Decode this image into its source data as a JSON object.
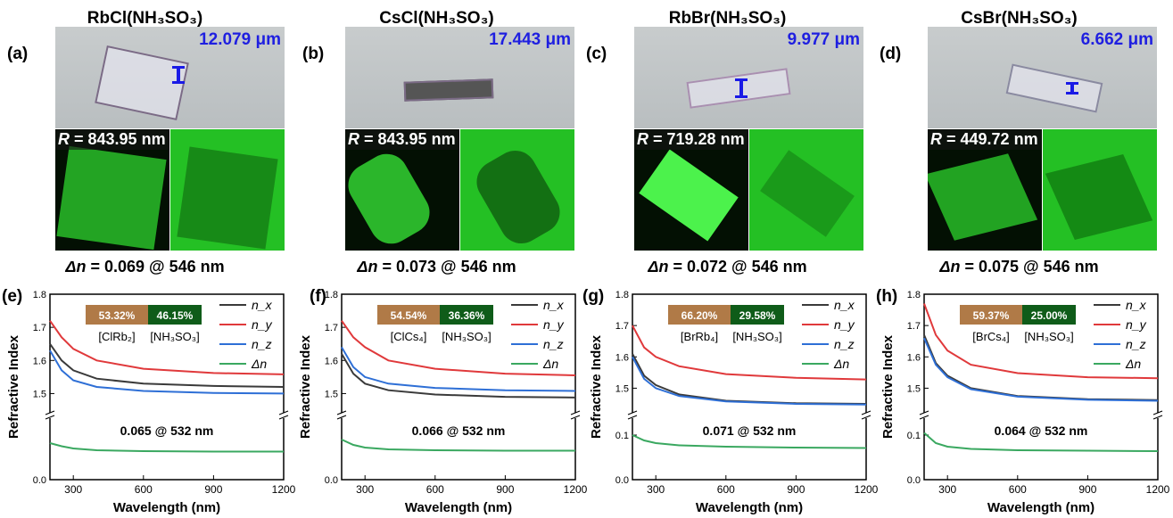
{
  "panels": [
    {
      "title": "RbCl(NH₃SO₃)",
      "photo_label": "(a)",
      "length": "12.079 μm",
      "R": "843.95 nm",
      "dn": "0.069 @ 546 nm",
      "chart_label": "(e)",
      "pct1": "53.32%",
      "pct2": "46.15%",
      "group1": "[ClRb₂]",
      "group2": "[NH₃SO₃]",
      "annotation": "0.065 @ 532 nm"
    },
    {
      "title": "CsCl(NH₃SO₃)",
      "photo_label": "(b)",
      "length": "17.443 μm",
      "R": "843.95 nm",
      "dn": "0.073 @ 546 nm",
      "chart_label": "(f)",
      "pct1": "54.54%",
      "pct2": "36.36%",
      "group1": "[ClCs₄]",
      "group2": "[NH₃SO₃]",
      "annotation": "0.066 @ 532 nm"
    },
    {
      "title": "RbBr(NH₃SO₃)",
      "photo_label": "(c)",
      "length": "9.977 μm",
      "R": "719.28 nm",
      "dn": "0.072 @ 546 nm",
      "chart_label": "(g)",
      "pct1": "66.20%",
      "pct2": "29.58%",
      "group1": "[BrRb₄]",
      "group2": "[NH₃SO₃]",
      "annotation": "0.071 @ 532 nm"
    },
    {
      "title": "CsBr(NH₃SO₃)",
      "photo_label": "(d)",
      "length": "6.662 μm",
      "R": "449.72 nm",
      "dn": "0.075 @ 546 nm",
      "chart_label": "(h)",
      "pct1": "59.37%",
      "pct2": "25.00%",
      "group1": "[BrCs₄]",
      "group2": "[NH₃SO₃]",
      "annotation": "0.064 @ 532 nm"
    }
  ],
  "labels": {
    "R_prefix": "R",
    "dn_prefix": "Δn",
    "ylabel": "Refractive Index",
    "xlabel": "Wavelength (nm)"
  },
  "legend": [
    "n_x",
    "n_y",
    "n_z",
    "Δn"
  ],
  "colors": {
    "nx": "#3a3a3a",
    "ny": "#e0393b",
    "nz": "#2e6fd6",
    "dn": "#3aa860",
    "bar1": "#b07a47",
    "bar2": "#0f5c19",
    "scale": "#1f1fe0"
  },
  "chart_data": [
    {
      "type": "line",
      "xlabel": "Wavelength (nm)",
      "ylabel": "Refractive Index",
      "xlim": [
        200,
        1200
      ],
      "xticks": [
        300,
        600,
        900,
        1200
      ],
      "yticks_upper": [
        1.5,
        1.6,
        1.7,
        1.8
      ],
      "yticks_lower": [
        0.0
      ],
      "ylim_upper": [
        1.45,
        1.8
      ],
      "ylim_lower": [
        0.0,
        0.12
      ],
      "series": [
        {
          "name": "n_x",
          "x": [
            200,
            250,
            300,
            400,
            600,
            900,
            1200
          ],
          "y": [
            1.65,
            1.6,
            1.57,
            1.545,
            1.53,
            1.523,
            1.52
          ]
        },
        {
          "name": "n_y",
          "x": [
            200,
            250,
            300,
            400,
            600,
            900,
            1200
          ],
          "y": [
            1.72,
            1.67,
            1.635,
            1.6,
            1.575,
            1.562,
            1.558
          ]
        },
        {
          "name": "n_z",
          "x": [
            200,
            250,
            300,
            400,
            600,
            900,
            1200
          ],
          "y": [
            1.63,
            1.57,
            1.54,
            1.52,
            1.508,
            1.502,
            1.5
          ]
        },
        {
          "name": "Δn",
          "x": [
            200,
            250,
            300,
            400,
            600,
            900,
            1200
          ],
          "y": [
            0.082,
            0.075,
            0.07,
            0.066,
            0.064,
            0.063,
            0.063
          ]
        }
      ]
    },
    {
      "type": "line",
      "xlabel": "Wavelength (nm)",
      "ylabel": "Refractive Index",
      "xlim": [
        200,
        1200
      ],
      "xticks": [
        300,
        600,
        900,
        1200
      ],
      "yticks_upper": [
        1.5,
        1.6,
        1.7,
        1.8
      ],
      "yticks_lower": [
        0.0
      ],
      "ylim_upper": [
        1.45,
        1.8
      ],
      "ylim_lower": [
        0.0,
        0.12
      ],
      "series": [
        {
          "name": "n_x",
          "x": [
            200,
            250,
            300,
            400,
            600,
            900,
            1200
          ],
          "y": [
            1.62,
            1.56,
            1.53,
            1.51,
            1.497,
            1.49,
            1.488
          ]
        },
        {
          "name": "n_y",
          "x": [
            200,
            250,
            300,
            400,
            600,
            900,
            1200
          ],
          "y": [
            1.72,
            1.67,
            1.64,
            1.6,
            1.575,
            1.56,
            1.555
          ]
        },
        {
          "name": "n_z",
          "x": [
            200,
            250,
            300,
            400,
            600,
            900,
            1200
          ],
          "y": [
            1.64,
            1.58,
            1.55,
            1.53,
            1.517,
            1.51,
            1.508
          ]
        },
        {
          "name": "Δn",
          "x": [
            200,
            250,
            300,
            400,
            600,
            900,
            1200
          ],
          "y": [
            0.09,
            0.078,
            0.072,
            0.068,
            0.066,
            0.065,
            0.065
          ]
        }
      ]
    },
    {
      "type": "line",
      "xlabel": "Wavelength (nm)",
      "ylabel": "Refractive Index",
      "xlim": [
        200,
        1200
      ],
      "xticks": [
        300,
        600,
        900,
        1200
      ],
      "yticks_upper": [
        1.5,
        1.6,
        1.7,
        1.8
      ],
      "yticks_lower": [
        0.0,
        0.1
      ],
      "ylim_upper": [
        1.43,
        1.8
      ],
      "ylim_lower": [
        0.0,
        0.12
      ],
      "series": [
        {
          "name": "n_x",
          "x": [
            200,
            250,
            300,
            400,
            600,
            900,
            1200
          ],
          "y": [
            1.61,
            1.54,
            1.51,
            1.48,
            1.46,
            1.452,
            1.45
          ]
        },
        {
          "name": "n_y",
          "x": [
            200,
            250,
            300,
            400,
            600,
            900,
            1200
          ],
          "y": [
            1.7,
            1.63,
            1.6,
            1.57,
            1.545,
            1.533,
            1.528
          ]
        },
        {
          "name": "n_z",
          "x": [
            200,
            250,
            300,
            400,
            600,
            900,
            1200
          ],
          "y": [
            1.6,
            1.53,
            1.5,
            1.475,
            1.458,
            1.45,
            1.448
          ]
        },
        {
          "name": "Δn",
          "x": [
            200,
            250,
            300,
            400,
            600,
            900,
            1200
          ],
          "y": [
            0.1,
            0.088,
            0.082,
            0.077,
            0.074,
            0.072,
            0.071
          ]
        }
      ]
    },
    {
      "type": "line",
      "xlabel": "Wavelength (nm)",
      "ylabel": "Refractive Index",
      "xlim": [
        200,
        1200
      ],
      "xticks": [
        300,
        600,
        900,
        1200
      ],
      "yticks_upper": [
        1.5,
        1.6,
        1.7,
        1.8
      ],
      "yticks_lower": [
        0.0,
        0.1
      ],
      "ylim_upper": [
        1.43,
        1.8
      ],
      "ylim_lower": [
        0.0,
        0.12
      ],
      "series": [
        {
          "name": "n_x",
          "x": [
            200,
            250,
            300,
            400,
            600,
            900,
            1200
          ],
          "y": [
            1.67,
            1.58,
            1.54,
            1.5,
            1.475,
            1.465,
            1.462
          ]
        },
        {
          "name": "n_y",
          "x": [
            200,
            250,
            300,
            400,
            600,
            900,
            1200
          ],
          "y": [
            1.77,
            1.67,
            1.62,
            1.575,
            1.548,
            1.535,
            1.532
          ]
        },
        {
          "name": "n_z",
          "x": [
            200,
            250,
            300,
            400,
            600,
            900,
            1200
          ],
          "y": [
            1.66,
            1.575,
            1.535,
            1.497,
            1.473,
            1.463,
            1.46
          ]
        },
        {
          "name": "Δn",
          "x": [
            200,
            250,
            300,
            400,
            600,
            900,
            1200
          ],
          "y": [
            0.105,
            0.082,
            0.074,
            0.069,
            0.066,
            0.065,
            0.064
          ]
        }
      ]
    }
  ]
}
